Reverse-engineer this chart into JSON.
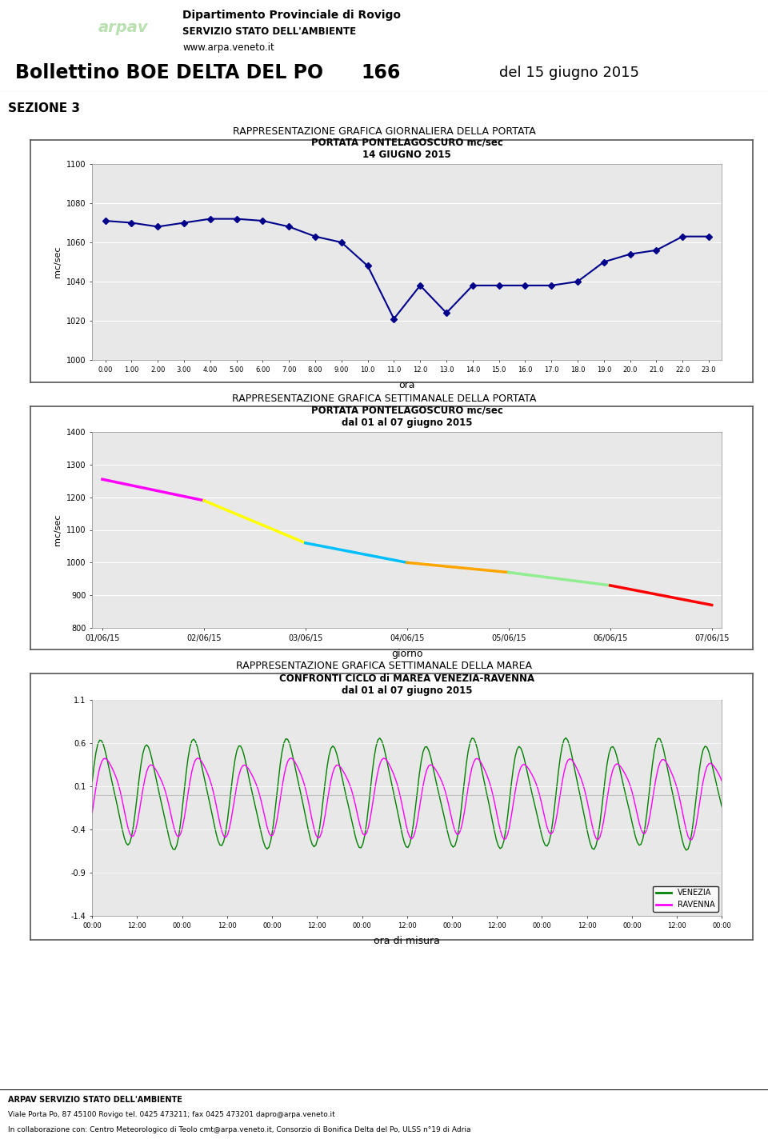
{
  "header": {
    "title_left": "Bollettino BOE DELTA DEL PO",
    "title_number": "166",
    "title_date": "del 15 giugno 2015",
    "section": "SEZIONE 3",
    "agency_name": "Dipartimento Provinciale di Rovigo",
    "agency_line2": "SERVIZIO STATO DELL'AMBIENTE",
    "agency_line3": "www.arpa.veneto.it",
    "header_bg": "#c8e6c0",
    "logo_bg": "#3a7a50"
  },
  "chart1": {
    "super_title": "RAPPRESENTAZIONE GRAFICA GIORNALIERA DELLA PORTATA",
    "title_line1": "PORTATA PONTELAGOSCURO mc/sec",
    "title_line2": "14 GIUGNO 2015",
    "xlabel": "ora",
    "ylabel": "mc/sec",
    "x": [
      0,
      1,
      2,
      3,
      4,
      5,
      6,
      7,
      8,
      9,
      10,
      11,
      12,
      13,
      14,
      15,
      16,
      17,
      18,
      19,
      20,
      21,
      22,
      23
    ],
    "y": [
      1071,
      1070,
      1068,
      1070,
      1072,
      1072,
      1071,
      1068,
      1063,
      1060,
      1048,
      1021,
      1038,
      1024,
      1038,
      1038,
      1038,
      1038,
      1040,
      1050,
      1054,
      1056,
      1063,
      1063
    ],
    "ylim": [
      1000,
      1100
    ],
    "yticks": [
      1000,
      1020,
      1040,
      1060,
      1080,
      1100
    ],
    "xticks": [
      0,
      1,
      2,
      3,
      4,
      5,
      6,
      7,
      8,
      9,
      10,
      11,
      12,
      13,
      14,
      15,
      16,
      17,
      18,
      19,
      20,
      21,
      22,
      23
    ],
    "xtick_labels": [
      "0.00",
      "1.00",
      "2.00",
      "3.00",
      "4.00",
      "5.00",
      "6.00",
      "7.00",
      "8.00",
      "9.00",
      "10.0",
      "11.0",
      "12.0",
      "13.0",
      "14.0",
      "15.0",
      "16.0",
      "17.0",
      "18.0",
      "19.0",
      "20.0",
      "21.0",
      "22.0",
      "23.0"
    ],
    "line_color": "#00008B",
    "marker": "D",
    "marker_size": 4,
    "bg_color": "#e8e8e8"
  },
  "chart2": {
    "super_title": "RAPPRESENTAZIONE GRAFICA SETTIMANALE DELLA PORTATA",
    "title_line1": "PORTATA PONTELAGOSCURO mc/sec",
    "title_line2": "dal 01 al 07 giugno 2015",
    "xlabel": "giorno",
    "ylabel": "mc/sec",
    "x_days": [
      "01/06/15",
      "02/06/15",
      "03/06/15",
      "04/06/15",
      "05/06/15",
      "06/06/15",
      "07/06/15"
    ],
    "x_numeric": [
      0,
      1,
      2,
      3,
      4,
      5,
      6
    ],
    "y": [
      1255,
      1190,
      1060,
      1000,
      970,
      930,
      870
    ],
    "segment_colors": [
      "#FF00FF",
      "#FFFF00",
      "#00BFFF",
      "#FFA500",
      "#90EE90",
      "#FF0000"
    ],
    "ylim": [
      800,
      1400
    ],
    "yticks": [
      800,
      900,
      1000,
      1100,
      1200,
      1300,
      1400
    ],
    "bg_color": "#e8e8e8"
  },
  "chart3": {
    "super_title": "RAPPRESENTAZIONE GRAFICA SETTIMANALE DELLA MAREA",
    "title_line1": "CONFRONTI CICLO di MAREA VENEZIA-RAVENNA",
    "title_line2": "dal 01 al 07 giugno 2015",
    "xlabel": "ora di misura",
    "ylabel": "",
    "venezia_color": "#008000",
    "ravenna_color": "#FF00FF",
    "ylim": [
      -1.4,
      1.1
    ],
    "yticks": [
      -1.4,
      -0.9,
      -0.4,
      0.1,
      0.6,
      1.1
    ],
    "bg_color": "#e8e8e8",
    "legend_venezia": "VENEZIA",
    "legend_ravenna": "RAVENNA"
  },
  "footer": {
    "line1": "ARPAV SERVIZIO STATO DELL'AMBIENTE",
    "line2": "Viale Porta Po, 87 45100 Rovigo tel. 0425 473211; fax 0425 473201 dapro@arpa.veneto.it",
    "line3": "In collaborazione con: Centro Meteorologico di Teolo cmt@arpa.veneto.it, Consorzio di Bonifica Delta del Po, ULSS n°19 di Adria"
  },
  "page_bg": "#ffffff"
}
